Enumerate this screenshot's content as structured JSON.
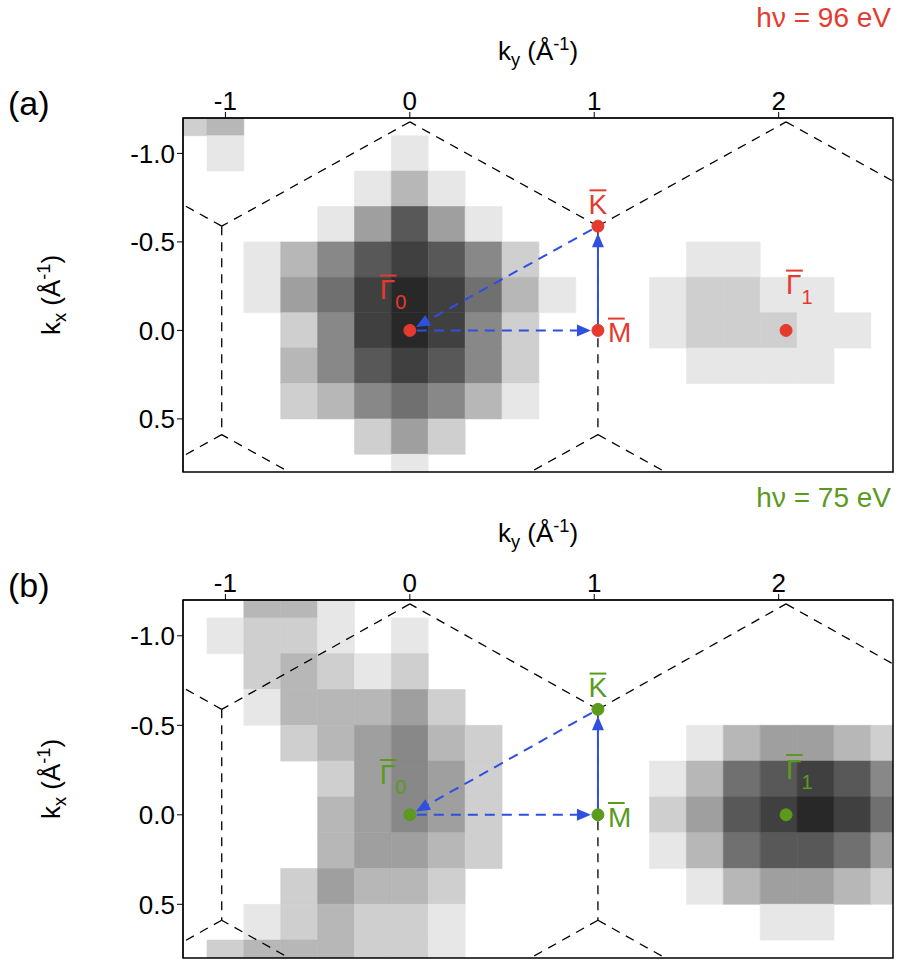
{
  "chart_data": [
    {
      "type": "heatmap",
      "panel": "(a)",
      "title": "hν = 96 eV",
      "color": "#e53a2f",
      "xlabel": {
        "base": "k",
        "sub": "y",
        "rest": " (Å",
        "sup": "-1",
        "end": ")"
      },
      "ylabel": {
        "base": "k",
        "sub": "x",
        "rest": " (Å",
        "sup": "-1",
        "end": ")"
      },
      "xlim": [
        -1.23,
        2.62
      ],
      "xticks": [
        -1,
        0,
        1,
        2
      ],
      "ylim": [
        -1.2,
        0.8
      ],
      "yticks": [
        {
          "value": -1,
          "label": "-1.0"
        },
        {
          "value": -0.5,
          "label": "-0.5"
        },
        {
          "value": 0,
          "label": "0.0"
        },
        {
          "value": 0.5,
          "label": "0.5"
        }
      ],
      "heatmap": {
        "x": [
          -1.2,
          -1.0,
          -0.8,
          -0.6,
          -0.4,
          -0.2,
          0,
          0.2,
          0.4,
          0.6,
          0.8,
          1.0,
          1.2,
          1.4,
          1.6,
          1.8,
          2.0,
          2.2,
          2.4,
          2.6
        ],
        "y": [
          -1.2,
          -1.0,
          -0.8,
          -0.6,
          -0.4,
          -0.2,
          0,
          0.2,
          0.4,
          0.6,
          0.8
        ],
        "zlim": [
          0,
          9
        ],
        "values": [
          [
            2,
            3,
            0,
            0,
            0,
            0,
            0,
            0,
            0,
            0,
            0,
            0,
            0,
            0,
            0,
            0,
            0,
            0,
            0,
            0
          ],
          [
            0,
            1,
            0,
            0,
            0,
            0,
            1,
            0,
            0,
            0,
            0,
            0,
            0,
            0,
            0,
            0,
            0,
            0,
            0,
            0
          ],
          [
            0,
            0,
            0,
            0,
            0,
            1,
            3,
            1,
            0,
            0,
            0,
            0,
            0,
            0,
            0,
            0,
            0,
            0,
            0,
            0
          ],
          [
            0,
            0,
            0,
            0,
            1,
            4,
            7,
            4,
            1,
            0,
            0,
            0,
            0,
            0,
            0,
            0,
            0,
            0,
            0,
            0
          ],
          [
            0,
            0,
            1,
            3,
            5,
            7,
            8,
            7,
            5,
            2,
            0,
            0,
            0,
            0,
            1,
            1,
            0,
            0,
            0,
            0
          ],
          [
            0,
            0,
            1,
            4,
            6,
            8,
            9,
            8,
            6,
            3,
            1,
            0,
            0,
            1,
            2,
            2,
            1,
            1,
            0,
            0
          ],
          [
            0,
            0,
            0,
            2,
            5,
            8,
            9,
            8,
            5,
            2,
            0,
            0,
            0,
            1,
            2,
            2,
            2,
            1,
            1,
            0
          ],
          [
            0,
            0,
            0,
            3,
            5,
            7,
            8,
            7,
            5,
            2,
            0,
            0,
            0,
            0,
            1,
            1,
            1,
            1,
            0,
            0
          ],
          [
            0,
            0,
            0,
            2,
            3,
            5,
            6,
            5,
            3,
            1,
            0,
            0,
            0,
            0,
            0,
            0,
            0,
            0,
            0,
            0
          ],
          [
            0,
            0,
            0,
            0,
            0,
            2,
            4,
            2,
            0,
            0,
            0,
            0,
            0,
            0,
            0,
            0,
            0,
            0,
            0,
            0
          ],
          [
            0,
            0,
            0,
            0,
            0,
            0,
            1,
            0,
            0,
            0,
            0,
            0,
            0,
            0,
            0,
            0,
            0,
            0,
            0,
            0
          ]
        ]
      },
      "bz_lines": [
        [
          1.02,
          -0.589,
          1.02,
          0.589
        ],
        [
          -1.02,
          -0.589,
          -1.02,
          0.589
        ],
        [
          1.02,
          -0.589,
          0,
          -1.178
        ],
        [
          0,
          -1.178,
          -1.02,
          -0.589
        ],
        [
          1.02,
          0.589,
          0,
          1.178
        ],
        [
          0,
          1.178,
          -1.02,
          0.589
        ],
        [
          1.02,
          -0.589,
          2.04,
          -1.178
        ],
        [
          1.02,
          0.589,
          2.04,
          1.178
        ],
        [
          -1.02,
          -0.589,
          -2.04,
          -1.178
        ],
        [
          -1.02,
          0.589,
          -2.04,
          1.178
        ],
        [
          2.04,
          -1.178,
          3.06,
          -0.589
        ],
        [
          2.04,
          1.178,
          3.06,
          0.589
        ]
      ],
      "points": [
        {
          "label": "Γ",
          "subscript": "0",
          "ky": 0,
          "kx": 0
        },
        {
          "label": "M",
          "ky": 1.02,
          "kx": 0
        },
        {
          "label": "K",
          "ky": 1.02,
          "kx": -0.589
        },
        {
          "label": "Γ",
          "subscript": "1",
          "ky": 2.04,
          "kx": 0
        }
      ],
      "arrows": [
        {
          "from": [
            0,
            0
          ],
          "to": [
            1.02,
            0
          ],
          "line_style": "dashed",
          "color": "#2f4fe0"
        },
        {
          "from": [
            1.02,
            0
          ],
          "to": [
            1.02,
            -0.589
          ],
          "line_style": "solid",
          "color": "#2f4fe0"
        },
        {
          "from": [
            1.02,
            -0.589
          ],
          "to": [
            0,
            0
          ],
          "line_style": "dashed",
          "color": "#2f4fe0"
        }
      ]
    },
    {
      "type": "heatmap",
      "panel": "(b)",
      "title": "hν = 75 eV",
      "color": "#5b9a1c",
      "xlabel": {
        "base": "k",
        "sub": "y",
        "rest": " (Å",
        "sup": "-1",
        "end": ")"
      },
      "ylabel": {
        "base": "k",
        "sub": "x",
        "rest": " (Å",
        "sup": "-1",
        "end": ")"
      },
      "xlim": [
        -1.23,
        2.62
      ],
      "xticks": [
        -1,
        0,
        1,
        2
      ],
      "ylim": [
        -1.2,
        0.8
      ],
      "yticks": [
        {
          "value": -1,
          "label": "-1.0"
        },
        {
          "value": -0.5,
          "label": "-0.5"
        },
        {
          "value": 0,
          "label": "0.0"
        },
        {
          "value": 0.5,
          "label": "0.5"
        }
      ],
      "heatmap": {
        "x": [
          -1.2,
          -1.0,
          -0.8,
          -0.6,
          -0.4,
          -0.2,
          0,
          0.2,
          0.4,
          0.6,
          0.8,
          1.0,
          1.2,
          1.4,
          1.6,
          1.8,
          2.0,
          2.2,
          2.4,
          2.6
        ],
        "y": [
          -1.2,
          -1.0,
          -0.8,
          -0.6,
          -0.4,
          -0.2,
          0,
          0.2,
          0.4,
          0.6,
          0.8
        ],
        "zlim": [
          0,
          9
        ],
        "values": [
          [
            0,
            0,
            3,
            3,
            1,
            0,
            0,
            0,
            0,
            0,
            0,
            0,
            0,
            0,
            0,
            0,
            0,
            0,
            0,
            0
          ],
          [
            0,
            1,
            2,
            2,
            1,
            0,
            1,
            0,
            0,
            0,
            0,
            0,
            0,
            0,
            0,
            0,
            0,
            0,
            0,
            0
          ],
          [
            0,
            0,
            2,
            3,
            2,
            1,
            2,
            0,
            0,
            0,
            0,
            0,
            0,
            0,
            0,
            0,
            0,
            0,
            0,
            0
          ],
          [
            0,
            0,
            1,
            3,
            3,
            3,
            4,
            2,
            0,
            0,
            0,
            0,
            0,
            0,
            0,
            0,
            0,
            0,
            0,
            0
          ],
          [
            0,
            0,
            0,
            2,
            3,
            4,
            5,
            3,
            2,
            0,
            0,
            0,
            0,
            0,
            1,
            3,
            4,
            4,
            3,
            2
          ],
          [
            0,
            0,
            0,
            0,
            2,
            4,
            5,
            4,
            2,
            0,
            0,
            0,
            0,
            1,
            3,
            6,
            7,
            8,
            7,
            5
          ],
          [
            0,
            0,
            0,
            0,
            3,
            4,
            5,
            4,
            2,
            0,
            0,
            0,
            0,
            2,
            4,
            7,
            8,
            9,
            8,
            6
          ],
          [
            0,
            0,
            0,
            0,
            3,
            4,
            4,
            3,
            2,
            0,
            0,
            0,
            0,
            1,
            3,
            6,
            7,
            7,
            6,
            4
          ],
          [
            0,
            0,
            0,
            2,
            4,
            3,
            3,
            2,
            0,
            0,
            0,
            0,
            0,
            0,
            1,
            3,
            4,
            4,
            3,
            2
          ],
          [
            0,
            0,
            1,
            2,
            3,
            2,
            2,
            1,
            0,
            0,
            0,
            0,
            0,
            0,
            0,
            0,
            1,
            1,
            0,
            0
          ],
          [
            0,
            2,
            3,
            3,
            3,
            2,
            2,
            1,
            0,
            0,
            0,
            0,
            0,
            0,
            0,
            0,
            0,
            0,
            0,
            0
          ]
        ]
      },
      "bz_lines": [
        [
          1.02,
          -0.589,
          1.02,
          0.589
        ],
        [
          -1.02,
          -0.589,
          -1.02,
          0.589
        ],
        [
          1.02,
          -0.589,
          0,
          -1.178
        ],
        [
          0,
          -1.178,
          -1.02,
          -0.589
        ],
        [
          1.02,
          0.589,
          0,
          1.178
        ],
        [
          0,
          1.178,
          -1.02,
          0.589
        ],
        [
          1.02,
          -0.589,
          2.04,
          -1.178
        ],
        [
          1.02,
          0.589,
          2.04,
          1.178
        ],
        [
          -1.02,
          -0.589,
          -2.04,
          -1.178
        ],
        [
          -1.02,
          0.589,
          -2.04,
          1.178
        ],
        [
          2.04,
          -1.178,
          3.06,
          -0.589
        ],
        [
          2.04,
          1.178,
          3.06,
          0.589
        ]
      ],
      "points": [
        {
          "label": "Γ",
          "subscript": "0",
          "ky": 0,
          "kx": 0
        },
        {
          "label": "M",
          "ky": 1.02,
          "kx": 0
        },
        {
          "label": "K",
          "ky": 1.02,
          "kx": -0.589
        },
        {
          "label": "Γ",
          "subscript": "1",
          "ky": 2.04,
          "kx": 0
        }
      ],
      "arrows": [
        {
          "from": [
            0,
            0
          ],
          "to": [
            1.02,
            0
          ],
          "line_style": "dashed",
          "color": "#2f4fe0"
        },
        {
          "from": [
            1.02,
            0
          ],
          "to": [
            1.02,
            -0.589
          ],
          "line_style": "solid",
          "color": "#2f4fe0"
        },
        {
          "from": [
            1.02,
            -0.589
          ],
          "to": [
            0,
            0
          ],
          "line_style": "dashed",
          "color": "#2f4fe0"
        }
      ]
    }
  ]
}
